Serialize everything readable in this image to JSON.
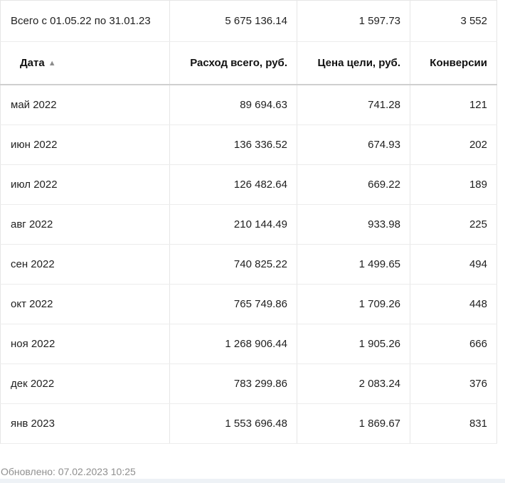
{
  "total": {
    "label": "Всего с 01.05.22 по 31.01.23",
    "spend": "5 675 136.14",
    "goal_price": "1 597.73",
    "conversions": "3 552"
  },
  "columns": {
    "date": "Дата",
    "spend": "Расход всего, руб.",
    "goal_price": "Цена цели, руб.",
    "conversions": "Конверсии"
  },
  "sort_indicator": "▲",
  "rows": [
    {
      "date": "май 2022",
      "spend": "89 694.63",
      "goal_price": "741.28",
      "conversions": "121"
    },
    {
      "date": "июн 2022",
      "spend": "136 336.52",
      "goal_price": "674.93",
      "conversions": "202"
    },
    {
      "date": "июл 2022",
      "spend": "126 482.64",
      "goal_price": "669.22",
      "conversions": "189"
    },
    {
      "date": "авг 2022",
      "spend": "210 144.49",
      "goal_price": "933.98",
      "conversions": "225"
    },
    {
      "date": "сен 2022",
      "spend": "740 825.22",
      "goal_price": "1 499.65",
      "conversions": "494"
    },
    {
      "date": "окт 2022",
      "spend": "765 749.86",
      "goal_price": "1 709.26",
      "conversions": "448"
    },
    {
      "date": "ноя 2022",
      "spend": "1 268 906.44",
      "goal_price": "1 905.26",
      "conversions": "666"
    },
    {
      "date": "дек 2022",
      "spend": "783 299.86",
      "goal_price": "2 083.24",
      "conversions": "376"
    },
    {
      "date": "янв 2023",
      "spend": "1 553 696.48",
      "goal_price": "1 869.67",
      "conversions": "831"
    }
  ],
  "updated": "Обновлено: 07.02.2023 10:25"
}
